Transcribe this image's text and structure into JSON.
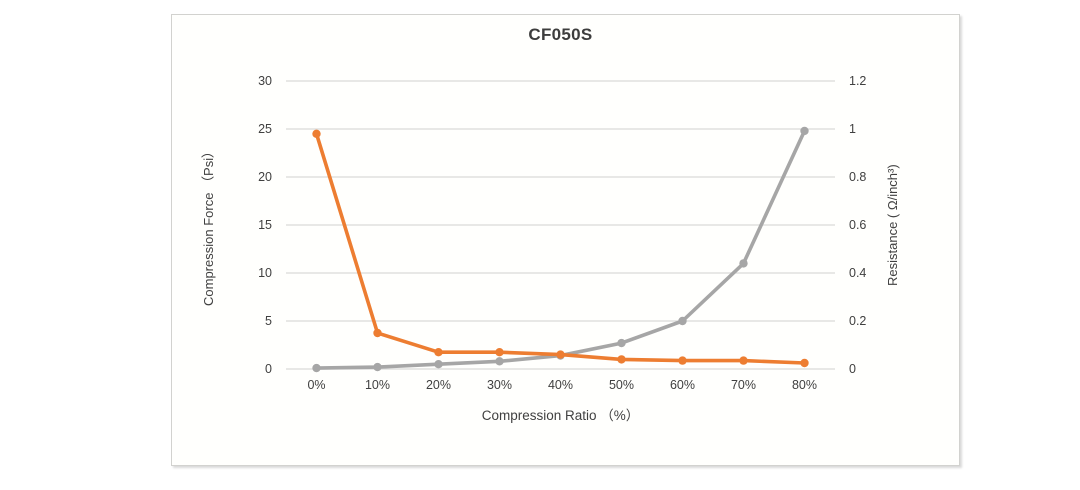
{
  "chart_data": {
    "type": "line",
    "title": "CF050S",
    "categories": [
      "0%",
      "10%",
      "20%",
      "30%",
      "40%",
      "50%",
      "60%",
      "70%",
      "80%"
    ],
    "x_axis": {
      "label": "Compression Ratio （%）"
    },
    "left_axis": {
      "label": "Compression Force （Psi）",
      "ticks": [
        "0",
        "5",
        "10",
        "15",
        "20",
        "25",
        "30"
      ],
      "min": 0,
      "max": 30
    },
    "right_axis": {
      "label": "Resistance ( Ω/inch³)",
      "ticks": [
        "0",
        "0.2",
        "0.4",
        "0.6",
        "0.8",
        "1",
        "1.2"
      ],
      "min": 0,
      "max": 1.2
    },
    "gridlines": {
      "horizontal": true,
      "color": "#d9d9d9"
    },
    "legend": {
      "visible": false
    },
    "series": [
      {
        "name": "Compression Force (Psi)",
        "axis": "left",
        "color": "#a6a6a6",
        "marker": "circle",
        "values": [
          0.1,
          0.2,
          0.5,
          0.8,
          1.4,
          2.7,
          5.0,
          11.0,
          24.8
        ]
      },
      {
        "name": "Resistance (Ω/inch³)",
        "axis": "right",
        "color": "#ed7d31",
        "marker": "circle",
        "values": [
          0.98,
          0.15,
          0.07,
          0.07,
          0.06,
          0.04,
          0.035,
          0.035,
          0.025
        ]
      }
    ]
  }
}
